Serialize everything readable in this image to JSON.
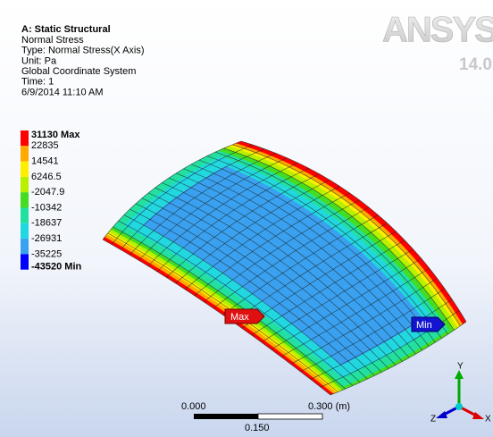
{
  "header": {
    "title": "A: Static Structural",
    "lines": [
      "Normal Stress",
      "Type: Normal Stress(X Axis)",
      "Unit: Pa",
      "Global Coordinate System",
      "Time: 1",
      "6/9/2014 11:10 AM"
    ]
  },
  "logo": {
    "brand": "ANSYS",
    "version": "14.0"
  },
  "legend": {
    "labels": [
      "31130 Max",
      "22835",
      "14541",
      "6246.5",
      "-2047.9",
      "-10342",
      "-18637",
      "-26931",
      "-35225",
      "-43520 Min"
    ],
    "colors": [
      "#ff0000",
      "#ffaa00",
      "#ffee00",
      "#b8f000",
      "#44dd22",
      "#22e0a0",
      "#22d8e0",
      "#3aa0f0",
      "#0000ff"
    ]
  },
  "probes": {
    "max": "Max",
    "min": "Min"
  },
  "scale_bar": {
    "left": "0.000",
    "right": "0.300 (m)",
    "middle": "0.150"
  },
  "triad": {
    "x": "X",
    "y": "Y",
    "z": "Z"
  }
}
